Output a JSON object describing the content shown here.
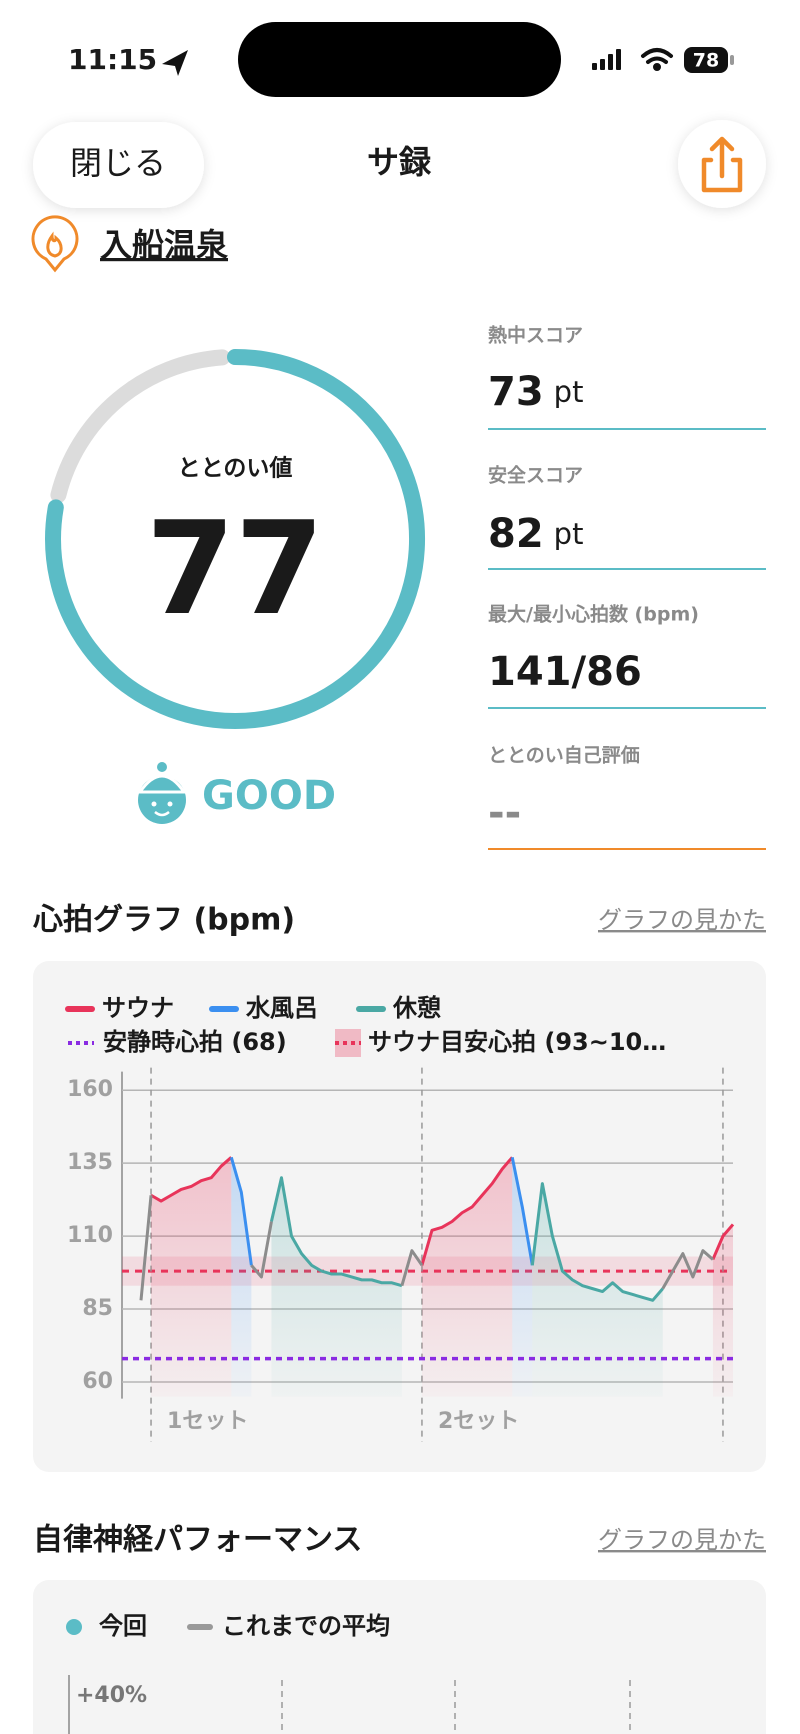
{
  "status_bar": {
    "time": "11:15",
    "battery": "78"
  },
  "header": {
    "close": "閉じる",
    "title": "サ録"
  },
  "facility": "入船温泉",
  "score": {
    "label": "ととのい値",
    "value": 77,
    "rating": "GOOD"
  },
  "stats": [
    {
      "label": "熱中スコア",
      "value": 73,
      "unit": "pt"
    },
    {
      "label": "安全スコア",
      "value": 82,
      "unit": "pt"
    },
    {
      "label": "最大/最小心拍数 (bpm)",
      "value": "141/86"
    },
    {
      "label": "ととのい自己評価",
      "value": "--"
    }
  ],
  "heart_section": {
    "title": "心拍グラフ (bpm)",
    "link": "グラフの見かた"
  },
  "chart_data": {
    "type": "line",
    "series": [
      {
        "name": "サウナ",
        "color": "#e8345a",
        "values": [
          null,
          124,
          122,
          124,
          126,
          127,
          129,
          130,
          134,
          137,
          null,
          null,
          null,
          null,
          null,
          null,
          null,
          null,
          null,
          null,
          null,
          null,
          null,
          null,
          null,
          null,
          null,
          null,
          100,
          112,
          113,
          115,
          118,
          120,
          124,
          128,
          133,
          137,
          null,
          null,
          null,
          null,
          null,
          null,
          null,
          null,
          null,
          null,
          null,
          null,
          null,
          null,
          null,
          null,
          null,
          null,
          null,
          102,
          110,
          114
        ]
      },
      {
        "name": "水風呂",
        "color": "#3b8ff0",
        "values": [
          null,
          null,
          null,
          null,
          null,
          null,
          null,
          null,
          null,
          137,
          125,
          100,
          null,
          null,
          null,
          null,
          null,
          null,
          null,
          null,
          null,
          null,
          null,
          null,
          null,
          null,
          null,
          null,
          null,
          null,
          null,
          null,
          null,
          null,
          null,
          null,
          null,
          137,
          120,
          100,
          null,
          null,
          null,
          null,
          null,
          null,
          null,
          null,
          null,
          null,
          null,
          null,
          null,
          null,
          null,
          null,
          null,
          null,
          null,
          null
        ]
      },
      {
        "name": "休憩",
        "color": "#4aa8a4",
        "values": [
          null,
          null,
          null,
          null,
          null,
          null,
          null,
          null,
          null,
          null,
          null,
          null,
          null,
          115,
          130,
          110,
          104,
          100,
          98,
          97,
          97,
          96,
          95,
          95,
          94,
          94,
          93,
          null,
          null,
          null,
          null,
          null,
          null,
          null,
          null,
          null,
          null,
          null,
          null,
          100,
          128,
          110,
          98,
          95,
          93,
          92,
          91,
          94,
          91,
          90,
          89,
          88,
          92,
          null,
          null,
          null,
          null,
          null,
          null,
          null
        ]
      },
      {
        "color": "#8c8c8c",
        "values": [
          88,
          124,
          null,
          null,
          null,
          null,
          null,
          null,
          null,
          null,
          null,
          100,
          96,
          115,
          null,
          null,
          null,
          null,
          null,
          null,
          null,
          null,
          null,
          null,
          null,
          null,
          93,
          105,
          100,
          null,
          null,
          null,
          null,
          null,
          null,
          null,
          null,
          null,
          null,
          null,
          null,
          null,
          null,
          null,
          null,
          null,
          null,
          null,
          null,
          null,
          null,
          null,
          92,
          98,
          104,
          96,
          105,
          102,
          null,
          null
        ]
      }
    ],
    "resting_hr": {
      "label": "安静時心拍 (68)",
      "value": 68,
      "color": "#8a2be2"
    },
    "target_zone": {
      "label": "サウナ目安心拍 (93~10…",
      "range": [
        93,
        103
      ],
      "color": "#e8345a"
    },
    "ylim": [
      55,
      165
    ],
    "yticks": [
      60,
      85,
      110,
      135,
      160
    ],
    "set_labels": [
      "1セット",
      "2セット"
    ],
    "set_markers": [
      1,
      28,
      58
    ]
  },
  "autonomic_section": {
    "title": "自律神経パフォーマンス",
    "link": "グラフの見かた",
    "legend": [
      {
        "name": "今回",
        "color": "#5bbcc6"
      },
      {
        "name": "これまでの平均",
        "color": "#999999"
      }
    ],
    "yticks": [
      {
        "value": 40,
        "label": "+40%"
      }
    ]
  }
}
